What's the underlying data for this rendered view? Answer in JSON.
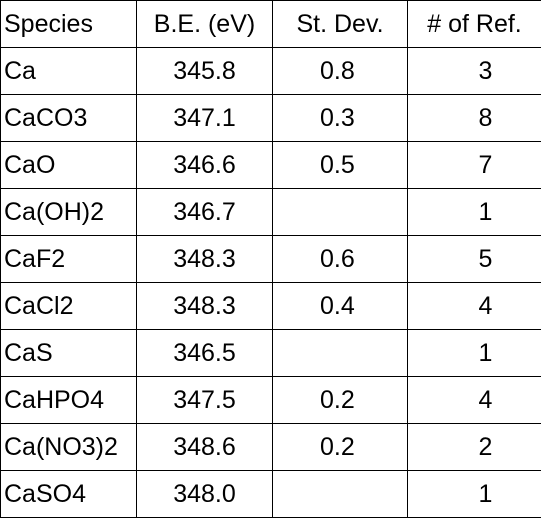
{
  "table": {
    "headers": [
      "Species",
      "B.E. (eV)",
      "St. Dev.",
      "# of Ref."
    ],
    "rows": [
      [
        "Ca",
        "345.8",
        "0.8",
        "3"
      ],
      [
        "CaCO3",
        "347.1",
        "0.3",
        "8"
      ],
      [
        "CaO",
        "346.6",
        "0.5",
        "7"
      ],
      [
        "Ca(OH)2",
        "346.7",
        "",
        "1"
      ],
      [
        "CaF2",
        "348.3",
        "0.6",
        "5"
      ],
      [
        "CaCl2",
        "348.3",
        "0.4",
        "4"
      ],
      [
        "CaS",
        "346.5",
        "",
        "1"
      ],
      [
        "CaHPO4",
        "347.5",
        "0.2",
        "4"
      ],
      [
        "Ca(NO3)2",
        "348.6",
        "0.2",
        "2"
      ],
      [
        "CaSO4",
        "348.0",
        "",
        "1"
      ]
    ]
  }
}
